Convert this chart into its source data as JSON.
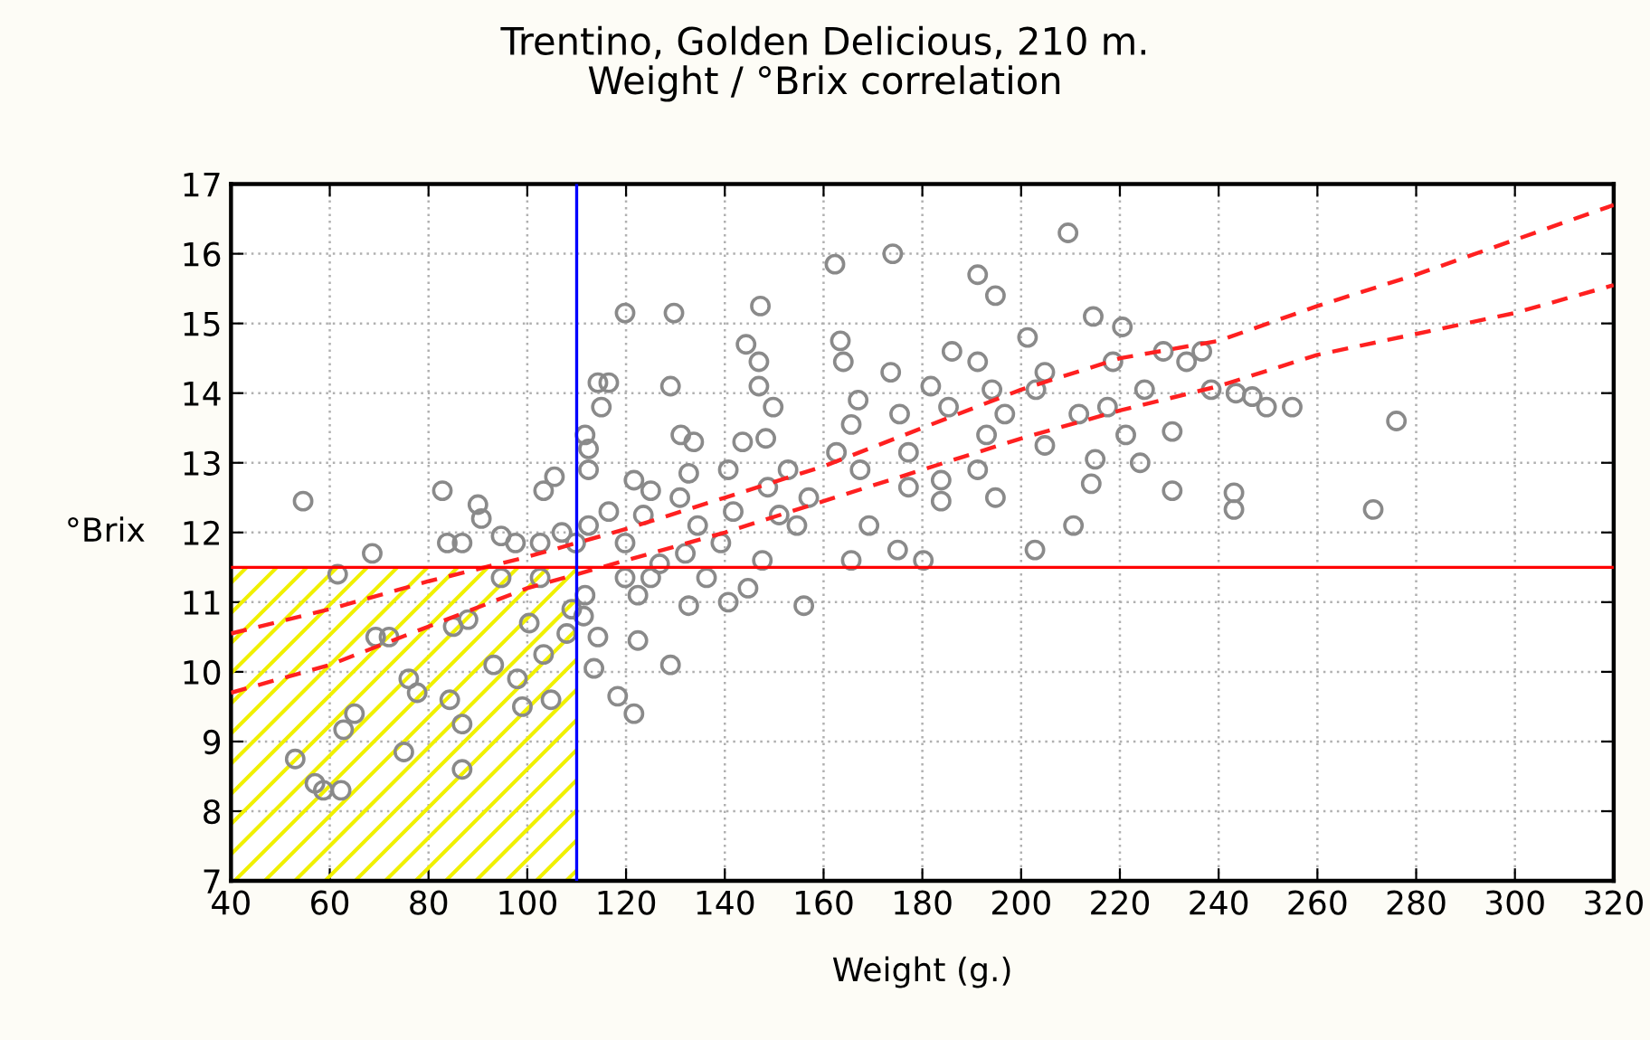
{
  "chart_data": {
    "type": "scatter",
    "title": "Trentino, Golden Delicious, 210 m.\nWeight / °Brix correlation",
    "xlabel": "Weight (g.)",
    "ylabel": "°Brix",
    "xlim": [
      40,
      320
    ],
    "xticks": [
      40,
      60,
      80,
      100,
      120,
      140,
      160,
      180,
      200,
      220,
      240,
      260,
      280,
      300,
      320
    ],
    "ylim": [
      7,
      17
    ],
    "yticks": [
      7,
      8,
      9,
      10,
      11,
      12,
      13,
      14,
      15,
      16,
      17
    ],
    "grid": true,
    "series": [
      {
        "color": "#8a8a8a",
        "marker": "circle",
        "x": [
          54.6,
          53,
          57,
          58.7,
          62.3,
          61.6,
          62.8,
          65,
          68.6,
          69.3,
          72,
          75,
          76,
          77.7,
          82.8,
          83.8,
          86.8,
          85,
          88,
          84.3,
          86.8,
          86.8,
          90,
          90.7,
          94.7,
          97.6,
          94.7,
          93.2,
          98,
          99,
          100.4,
          102.6,
          102.6,
          103.3,
          105.5,
          104.8,
          103.3,
          107,
          109.8,
          108,
          109,
          111.7,
          114.3,
          116.5,
          115,
          112.4,
          112.4,
          112.4,
          116.5,
          111.7,
          114.3,
          113.5,
          111.4,
          118.3,
          119.8,
          129.7,
          129,
          121.6,
          123.5,
          125,
          119.8,
          119.8,
          122.4,
          125,
          126.8,
          122.4,
          129,
          121.6,
          131.1,
          133.7,
          132.7,
          130.9,
          134.5,
          132,
          136.3,
          132.7,
          140.7,
          139.2,
          141.7,
          140.7,
          144.3,
          146.9,
          146.9,
          147.2,
          143.6,
          149.8,
          148.3,
          144.7,
          147.6,
          148.7,
          152.8,
          151,
          154.6,
          157,
          156,
          162.3,
          163.4,
          164,
          165.6,
          167,
          162.6,
          167.4,
          165.6,
          169.2,
          174,
          173.6,
          175.4,
          177.2,
          177.2,
          175,
          180.2,
          181.7,
          185.3,
          183.8,
          186,
          183.8,
          191.2,
          194.8,
          191.2,
          194.1,
          196.7,
          191.2,
          194.8,
          193,
          201.3,
          203,
          204.8,
          202.8,
          204.8,
          209.5,
          210.6,
          211.7,
          214.6,
          215,
          214.2,
          218.6,
          220.5,
          217.5,
          221.2,
          225,
          224.1,
          228.8,
          230.6,
          230.6,
          236.6,
          238.5,
          233.5,
          243.1,
          243.1,
          243.5,
          246.8,
          249.7,
          254.9,
          271.3,
          276
        ],
        "values": [
          12.45,
          8.75,
          8.4,
          8.3,
          8.3,
          11.4,
          9.17,
          9.4,
          11.7,
          10.5,
          10.5,
          8.85,
          9.9,
          9.7,
          12.6,
          11.85,
          11.85,
          10.65,
          10.75,
          9.6,
          9.25,
          8.6,
          12.4,
          12.2,
          11.95,
          11.85,
          11.35,
          10.1,
          9.9,
          9.5,
          10.7,
          11.85,
          11.35,
          12.6,
          12.8,
          9.6,
          10.25,
          12.0,
          11.85,
          10.55,
          10.9,
          13.4,
          14.15,
          14.15,
          13.8,
          13.2,
          12.9,
          12.1,
          12.3,
          11.1,
          10.5,
          10.05,
          10.8,
          9.65,
          15.15,
          15.15,
          14.1,
          12.75,
          12.25,
          12.6,
          11.85,
          11.35,
          11.1,
          11.35,
          11.55,
          10.45,
          10.1,
          9.4,
          13.4,
          13.3,
          12.85,
          12.5,
          12.1,
          11.7,
          11.35,
          10.95,
          12.9,
          11.85,
          12.3,
          11.0,
          14.7,
          14.45,
          14.1,
          15.25,
          13.3,
          13.8,
          13.35,
          11.2,
          11.6,
          12.65,
          12.9,
          12.25,
          12.1,
          12.5,
          10.95,
          15.85,
          14.75,
          14.45,
          13.55,
          13.9,
          13.15,
          12.9,
          11.6,
          12.1,
          16.0,
          14.3,
          13.7,
          13.15,
          12.65,
          11.75,
          11.6,
          14.1,
          13.8,
          12.75,
          14.6,
          12.45,
          15.7,
          15.4,
          14.45,
          14.05,
          13.7,
          12.9,
          12.5,
          13.4,
          14.8,
          14.05,
          13.25,
          11.75,
          14.3,
          16.3,
          12.1,
          13.7,
          15.1,
          13.05,
          12.7,
          14.45,
          14.95,
          13.8,
          13.4,
          14.05,
          13.0,
          14.6,
          13.45,
          12.6,
          14.6,
          14.05,
          14.45,
          12.57,
          12.33,
          14.0,
          13.95,
          13.8,
          13.8,
          12.33,
          13.6
        ]
      },
      {
        "type": "line",
        "color": "#ff2020",
        "line_style": "dashed",
        "x": [
          40,
          60,
          80,
          100,
          110,
          120,
          140,
          160,
          180,
          200,
          220,
          240,
          260,
          280,
          300,
          320
        ],
        "values": [
          10.55,
          10.9,
          11.3,
          11.65,
          11.85,
          12.05,
          12.5,
          12.95,
          13.5,
          14.05,
          14.5,
          14.75,
          15.25,
          15.7,
          16.2,
          16.7
        ]
      },
      {
        "type": "line",
        "color": "#ff2020",
        "line_style": "dashed",
        "x": [
          40,
          60,
          80,
          100,
          120,
          140,
          160,
          180,
          200,
          220,
          240,
          260,
          280,
          300,
          320
        ],
        "values": [
          9.7,
          10.1,
          10.65,
          11.2,
          11.6,
          12.0,
          12.45,
          12.9,
          13.35,
          13.75,
          14.1,
          14.55,
          14.85,
          15.15,
          15.55
        ]
      }
    ],
    "ref_lines": [
      {
        "axis": "y",
        "value": 11.5,
        "color": "#ff0000",
        "line_style": "solid"
      },
      {
        "axis": "x",
        "value": 110,
        "color": "#0000ff",
        "line_style": "solid"
      }
    ]
  }
}
